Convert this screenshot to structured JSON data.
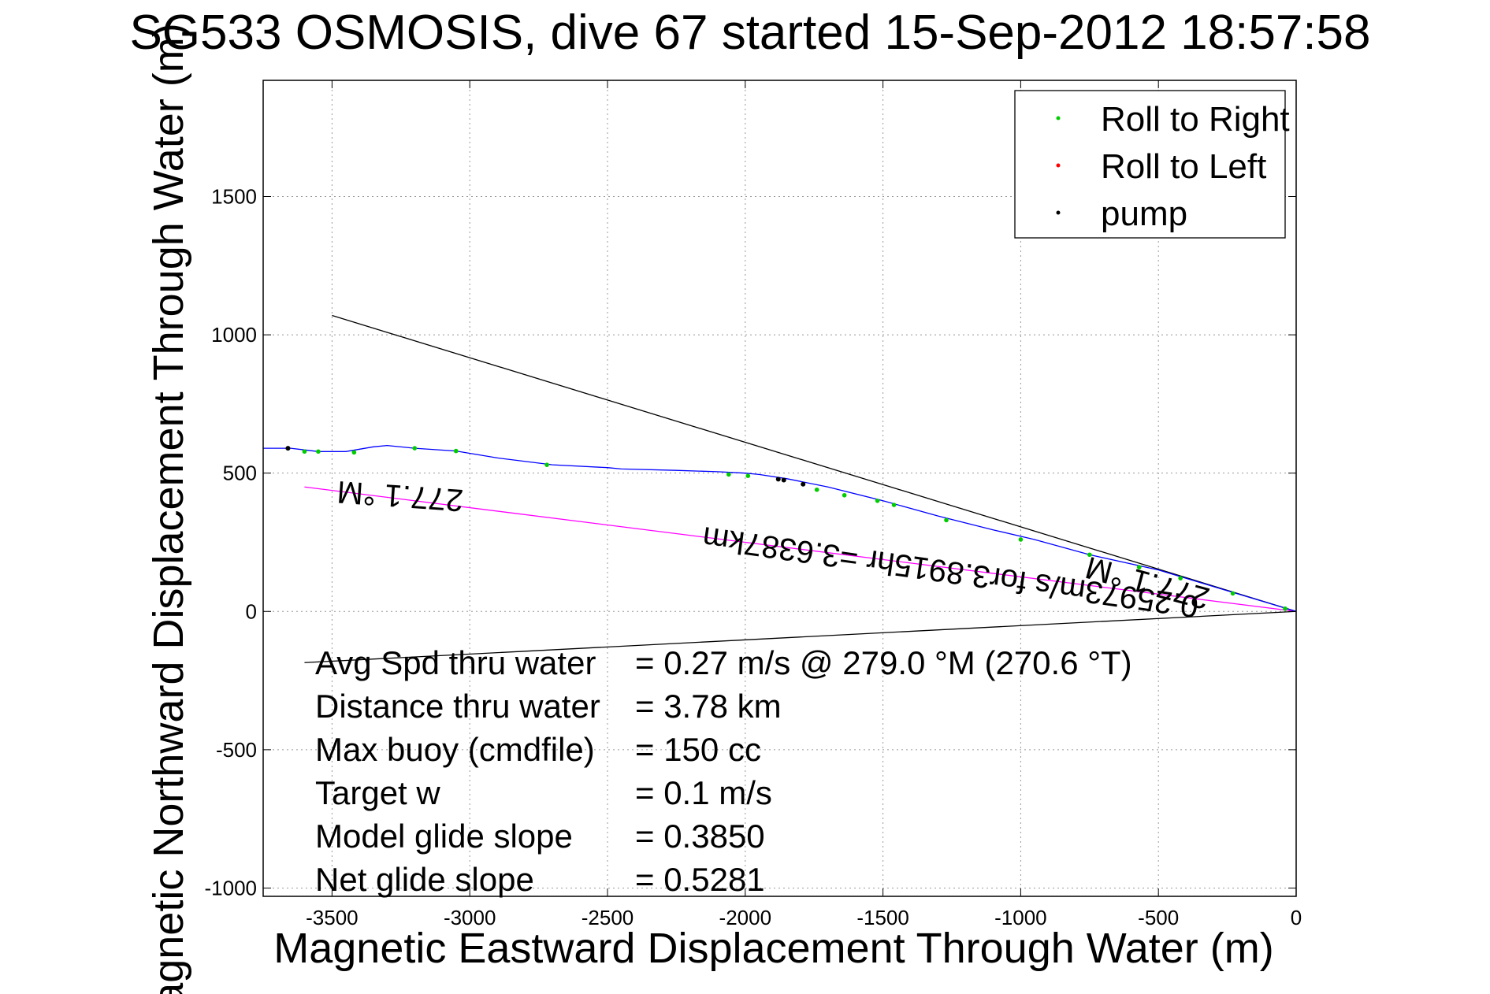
{
  "chart_data": {
    "type": "line",
    "title": "SG533 OSMOSIS, dive 67 started 15-Sep-2012 18:57:58",
    "xlabel": "Magnetic Eastward Displacement Through Water (m)",
    "ylabel": "Magnetic Northward Displacement Through Water (m)",
    "xlim": [
      -3750,
      0
    ],
    "ylim": [
      -1030,
      1920
    ],
    "xticks": [
      -3500,
      -3000,
      -2500,
      -2000,
      -1500,
      -1000,
      -500,
      0
    ],
    "yticks": [
      -1000,
      -500,
      0,
      500,
      1000,
      1500
    ],
    "grid": true,
    "legend_position": "top-right",
    "legend": [
      {
        "label": "Roll to Right",
        "color": "#00cc00"
      },
      {
        "label": "Roll to Left",
        "color": "#ff0000"
      },
      {
        "label": "pump",
        "color": "#000000"
      }
    ],
    "track": {
      "color": "#0000ff",
      "x": [
        0,
        -150,
        -300,
        -500,
        -750,
        -950,
        -1100,
        -1300,
        -1500,
        -1700,
        -1850,
        -1950,
        -2000,
        -2100,
        -2250,
        -2450,
        -2500,
        -2700,
        -2900,
        -3050,
        -3200,
        -3300,
        -3350,
        -3450,
        -3550,
        -3650,
        -3750
      ],
      "y": [
        0,
        45,
        90,
        150,
        205,
        260,
        295,
        345,
        400,
        450,
        480,
        495,
        500,
        505,
        510,
        515,
        520,
        530,
        555,
        580,
        590,
        600,
        595,
        578,
        578,
        590,
        590
      ]
    },
    "roll_right_points": {
      "x": [
        -40,
        -230,
        -420,
        -570,
        -750,
        -1000,
        -1270,
        -1460,
        -1520,
        -1640,
        -1740,
        -1990,
        -2060,
        -2720,
        -3050,
        -3200,
        -3420,
        -3550,
        -3600
      ],
      "y": [
        10,
        65,
        120,
        160,
        205,
        260,
        330,
        385,
        400,
        420,
        440,
        490,
        495,
        530,
        580,
        590,
        575,
        578,
        578
      ]
    },
    "pump_points": {
      "x": [
        -1860,
        -1880,
        -1790,
        -3660
      ],
      "y": [
        475,
        478,
        460,
        590
      ]
    },
    "reference_lines": [
      {
        "name": "upper_bound",
        "color": "#000000",
        "x": [
          -3500,
          0
        ],
        "y": [
          1070,
          0
        ]
      },
      {
        "name": "lower_bound",
        "color": "#000000",
        "x": [
          -3600,
          0
        ],
        "y": [
          -185,
          0
        ]
      },
      {
        "name": "mean_heading",
        "color": "#ff00ff",
        "x": [
          -3600,
          0
        ],
        "y": [
          450,
          0
        ]
      }
    ],
    "annotations": [
      {
        "text": "277.1 °M",
        "x": -3250,
        "y": 455,
        "rotate": 184
      },
      {
        "text": "277.1 °M",
        "x": -530,
        "y": 140,
        "rotate": 195
      },
      {
        "text": "0.25973m/s for3.8915hr =3.6387km",
        "x": -1250,
        "y": 180,
        "rotate": 188
      }
    ],
    "stats": [
      {
        "label": "Avg Spd thru water",
        "value": "=  0.27 m/s @ 279.0 °M (270.6 °T)"
      },
      {
        "label": "Distance thru water",
        "value": "=  3.78 km"
      },
      {
        "label": "Max buoy (cmdfile)",
        "value": "= 150 cc"
      },
      {
        "label": "Target w",
        "value": "= 0.1 m/s"
      },
      {
        "label": "Model glide slope",
        "value": "= 0.3850"
      },
      {
        "label": "Net glide slope",
        "value": "= 0.5281"
      }
    ]
  }
}
